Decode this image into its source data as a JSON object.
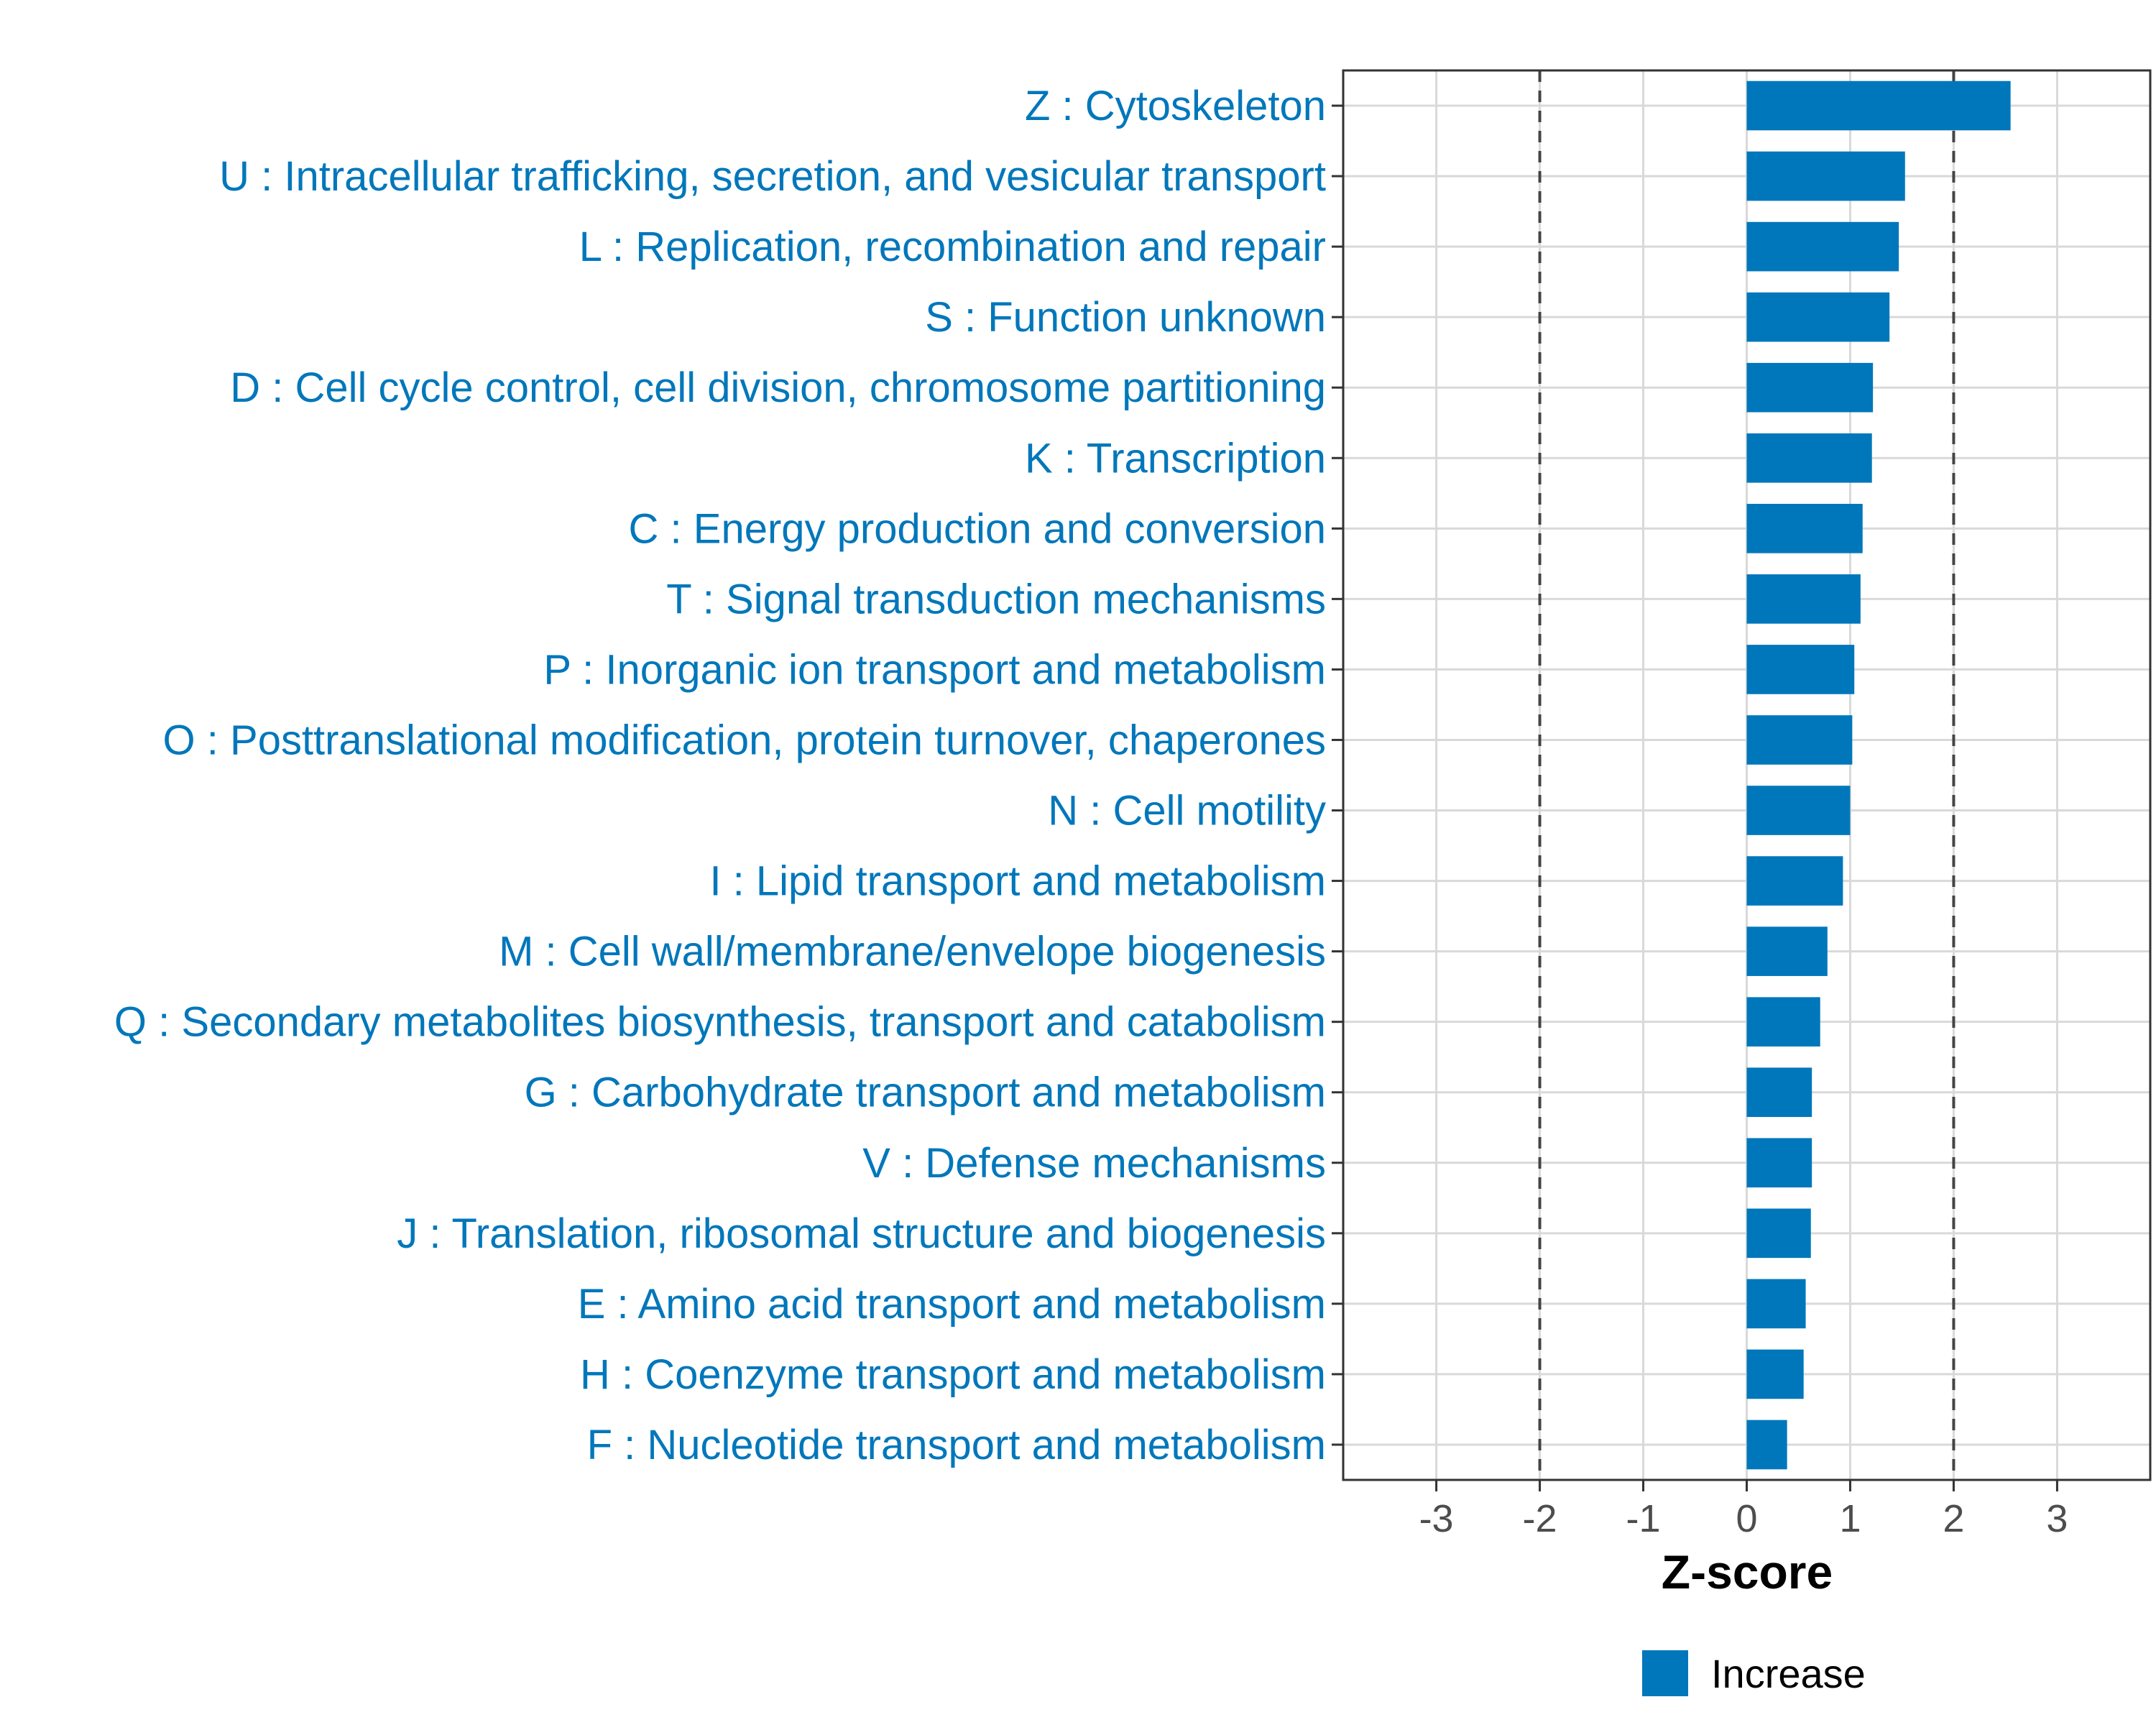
{
  "chart_data": {
    "type": "bar",
    "orientation": "horizontal",
    "categories": [
      "Z : Cytoskeleton",
      "U : Intracellular trafficking, secretion, and vesicular transport",
      "L : Replication, recombination and repair",
      "S : Function unknown",
      "D : Cell cycle control, cell division, chromosome partitioning",
      "K : Transcription",
      "C : Energy production and conversion",
      "T : Signal transduction mechanisms",
      "P : Inorganic ion transport and metabolism",
      "O : Posttranslational modification, protein turnover, chaperones",
      "N : Cell motility",
      "I : Lipid transport and metabolism",
      "M : Cell wall/membrane/envelope biogenesis",
      "Q : Secondary metabolites biosynthesis, transport and catabolism",
      "G : Carbohydrate transport and metabolism",
      "V : Defense mechanisms",
      "J : Translation, ribosomal structure and biogenesis",
      "E : Amino acid transport and metabolism",
      "H : Coenzyme transport and metabolism",
      "F : Nucleotide transport and metabolism"
    ],
    "values": [
      2.55,
      1.53,
      1.47,
      1.38,
      1.22,
      1.21,
      1.12,
      1.1,
      1.04,
      1.02,
      1.0,
      0.93,
      0.78,
      0.71,
      0.63,
      0.63,
      0.62,
      0.57,
      0.55,
      0.39
    ],
    "series_name": "Increase",
    "bar_color": "#0077BB",
    "label_color": "#0077BB",
    "xlabel": "Z-score",
    "ylabel": "",
    "xlim": [
      -3.9,
      3.9
    ],
    "xticks": [
      "-3",
      "-2",
      "-1",
      "0",
      "1",
      "2",
      "3"
    ],
    "xtick_values": [
      -3,
      -2,
      -1,
      0,
      1,
      2,
      3
    ],
    "threshold_lines": [
      -2,
      2
    ],
    "grid": true,
    "legend": {
      "position": "bottom",
      "entries": [
        "Increase"
      ]
    }
  }
}
